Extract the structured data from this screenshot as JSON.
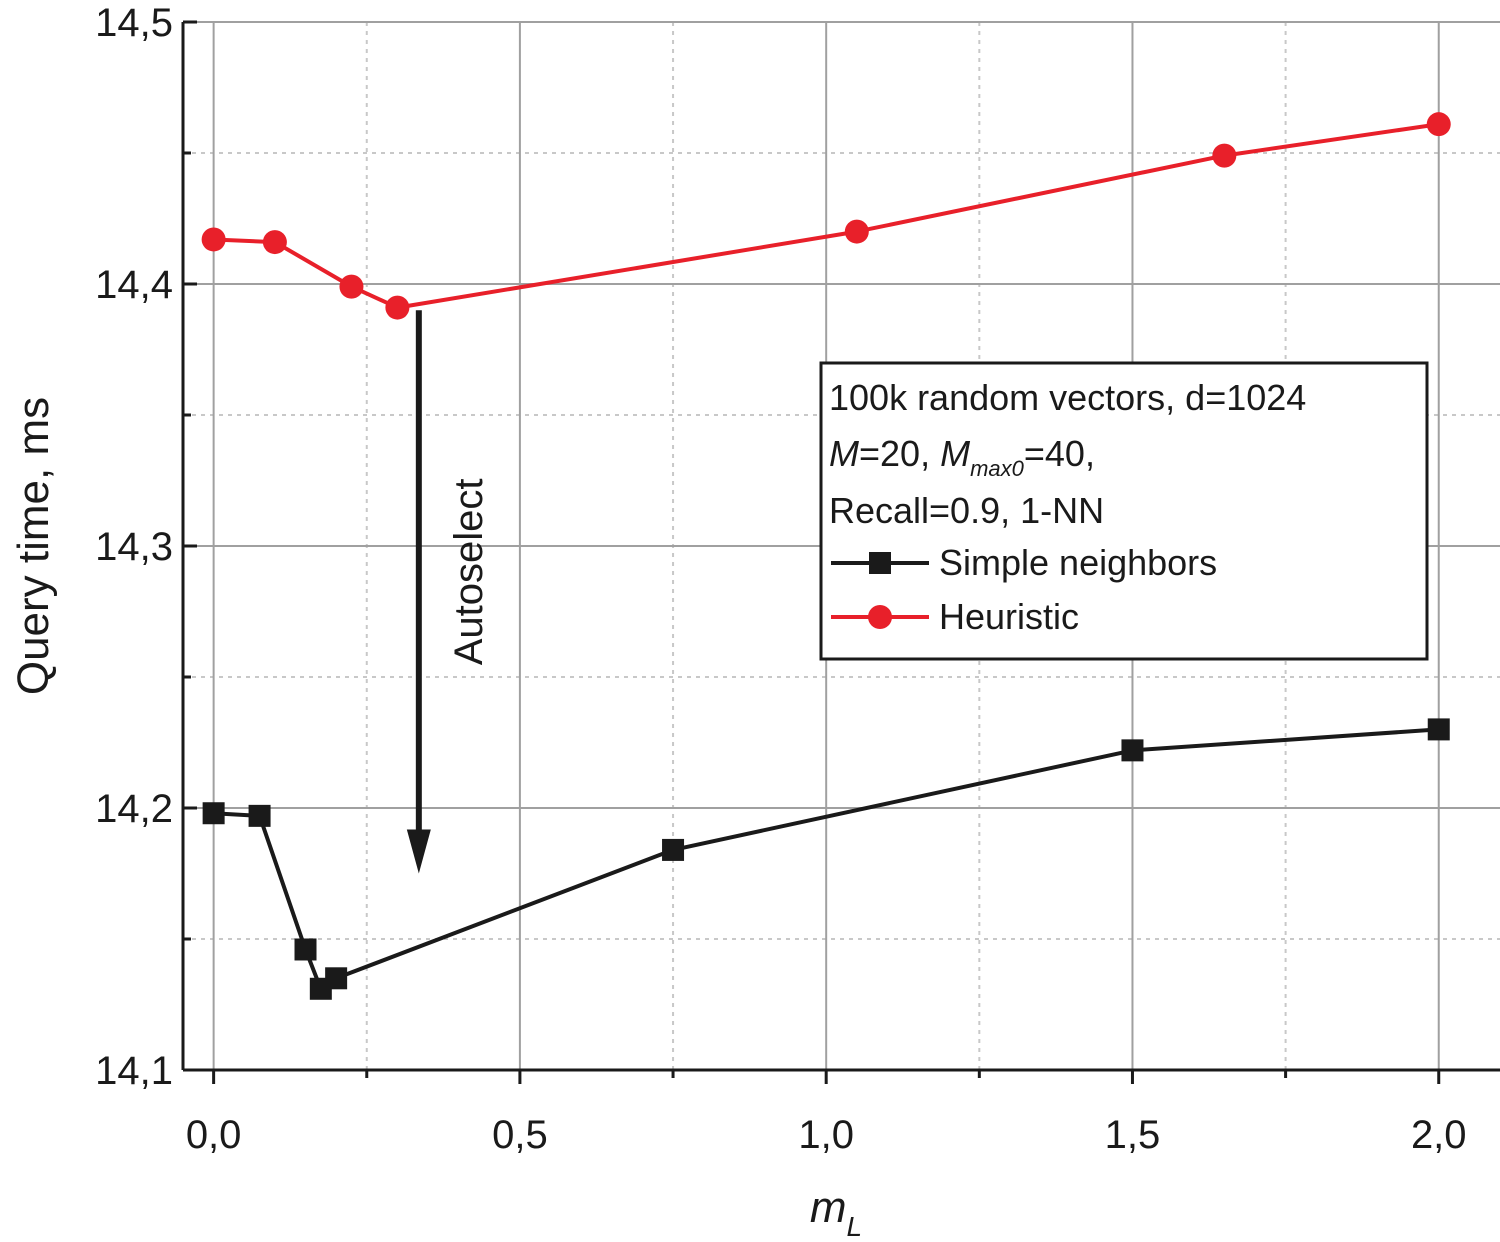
{
  "chart_data": {
    "type": "line",
    "xlabel": {
      "main": "m",
      "sub": "L"
    },
    "ylabel": "Query time, ms",
    "xlim": [
      -0.05,
      2.1
    ],
    "ylim": [
      14.1,
      14.5
    ],
    "x_ticks": [
      0.0,
      0.5,
      1.0,
      1.5,
      2.0
    ],
    "x_tick_labels": [
      "0,0",
      "0,5",
      "1,0",
      "1,5",
      "2,0"
    ],
    "y_ticks": [
      14.1,
      14.2,
      14.3,
      14.4,
      14.5
    ],
    "y_tick_labels": [
      "14,1",
      "14,2",
      "14,3",
      "14,4",
      "14,5"
    ],
    "x_minor_ticks": [
      0.25,
      0.75,
      1.25,
      1.75
    ],
    "y_minor_ticks": [
      14.15,
      14.25,
      14.35,
      14.45
    ],
    "grid": true,
    "legend_position": "right",
    "legend_lines": [
      {
        "parts": [
          {
            "text": "100k random vectors, d=1024",
            "style": "normal"
          }
        ]
      },
      {
        "parts": [
          {
            "text": "M",
            "style": "italic"
          },
          {
            "text": "=20, ",
            "style": "normal"
          },
          {
            "text": "M",
            "style": "italic"
          },
          {
            "text": "max0",
            "style": "sub"
          },
          {
            "text": "=40,",
            "style": "normal"
          }
        ]
      },
      {
        "parts": [
          {
            "text": "Recall=0.9, 1-NN",
            "style": "normal"
          }
        ]
      }
    ],
    "series": [
      {
        "name": "Simple neighbors",
        "color": "#1a1a1a",
        "marker": "square",
        "x": [
          0.0,
          0.075,
          0.15,
          0.175,
          0.2,
          0.75,
          1.5,
          2.0
        ],
        "y": [
          14.198,
          14.197,
          14.146,
          14.131,
          14.135,
          14.184,
          14.222,
          14.23
        ]
      },
      {
        "name": "Heuristic",
        "color": "#e8202a",
        "marker": "circle",
        "x": [
          0.0,
          0.1,
          0.225,
          0.3,
          1.05,
          1.65,
          2.0
        ],
        "y": [
          14.417,
          14.416,
          14.399,
          14.391,
          14.42,
          14.449,
          14.461
        ]
      }
    ],
    "annotations": [
      {
        "text": "Autoselect",
        "type": "arrow",
        "direction": "down",
        "x": 0.335,
        "y_from": 14.39,
        "y_to": 14.175
      }
    ]
  }
}
